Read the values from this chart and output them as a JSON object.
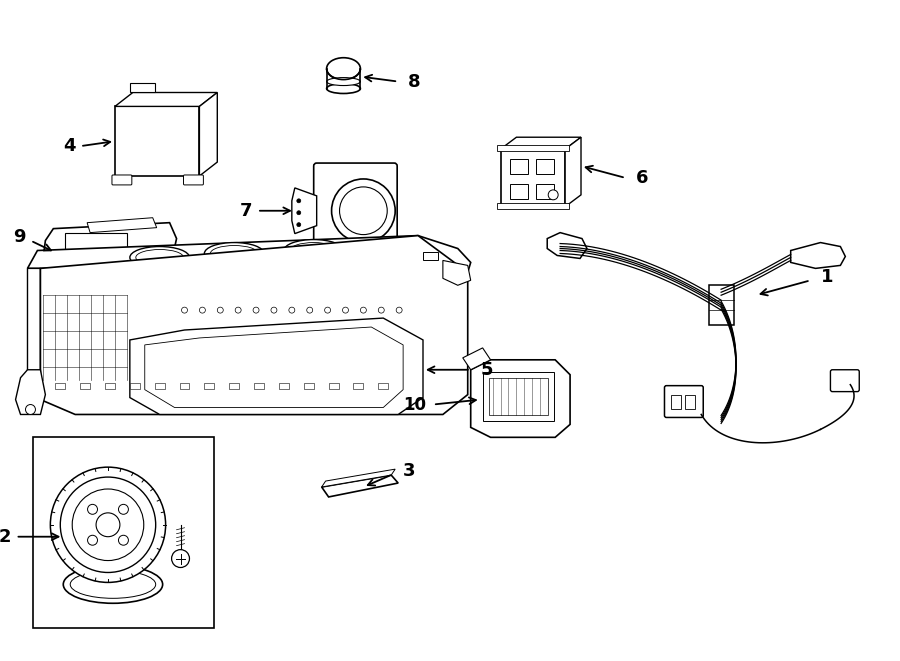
{
  "bg_color": "#ffffff",
  "line_color": "#000000",
  "fig_width": 9.0,
  "fig_height": 6.61,
  "lw": 1.0
}
